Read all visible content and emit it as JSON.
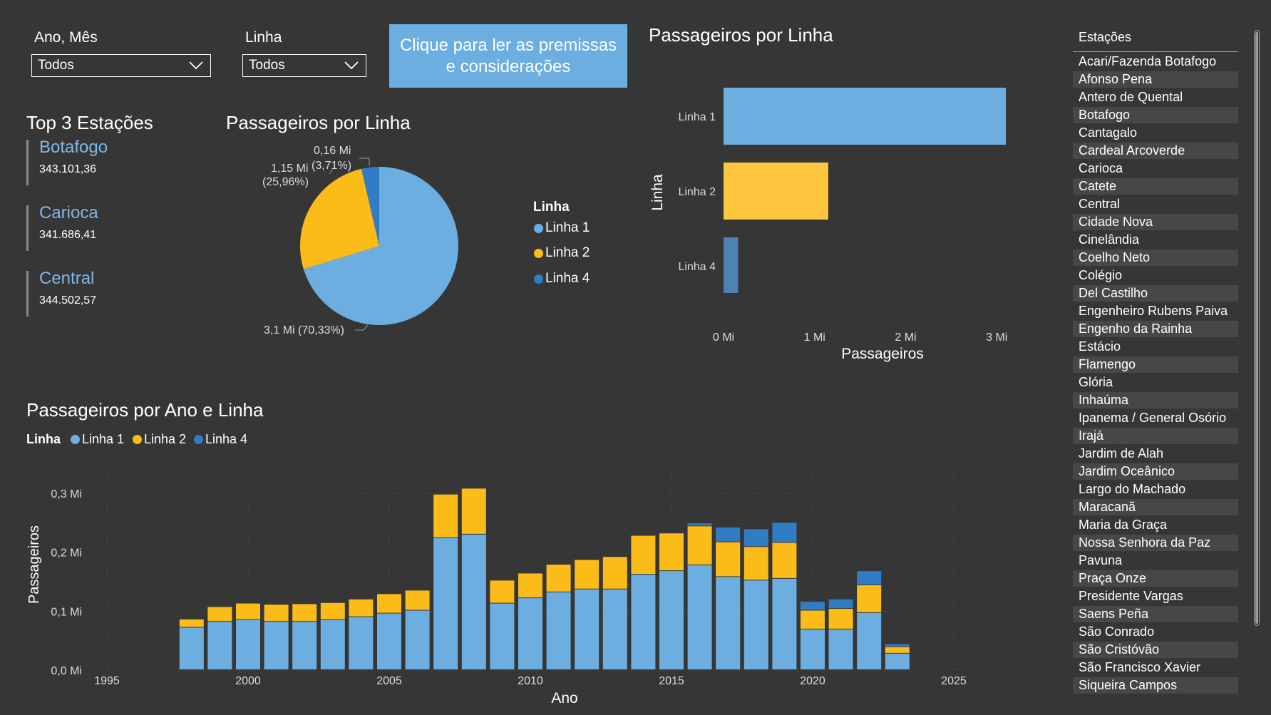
{
  "filters": {
    "period": {
      "title": "Ano, Mês",
      "value": "Todos"
    },
    "line": {
      "title": "Linha",
      "value": "Todos"
    }
  },
  "info_button": {
    "label": "Clique para ler as premissas e considerações"
  },
  "top3": {
    "title": "Top 3 Estações",
    "items": [
      {
        "name": "Botafogo",
        "value": "343.101,36"
      },
      {
        "name": "Carioca",
        "value": "341.686,41"
      },
      {
        "name": "Central",
        "value": "344.502,57"
      }
    ]
  },
  "pie": {
    "title": "Passageiros por Linha",
    "legend_title": "Linha",
    "labels": {
      "l1": "3,1 Mi (70,33%)",
      "l2a": "1,15 Mi",
      "l2b": "(25,96%)",
      "l4a": "0,16 Mi",
      "l4b": "(3,71%)"
    }
  },
  "hbar": {
    "title": "Passageiros por Linha",
    "ylabel": "Linha",
    "xlabel": "Passageiros"
  },
  "stacked": {
    "title": "Passageiros por Ano e Linha",
    "legend_title": "Linha",
    "xlabel": "Ano",
    "ylabel": "Passageiros"
  },
  "colors": {
    "linha1": "#6daee0",
    "linha2": "#fbbc1a",
    "linha4": "#2f7ec5",
    "hbar_linha2": "#ffc640",
    "hbar_linha4": "#4d82b3"
  },
  "chart_data": [
    {
      "type": "pie",
      "title": "Passageiros por Linha",
      "legend": [
        "Linha 1",
        "Linha 2",
        "Linha 4"
      ],
      "categories": [
        "Linha 1",
        "Linha 2",
        "Linha 4"
      ],
      "values": [
        3.1,
        1.15,
        0.16
      ],
      "percent": [
        70.33,
        25.96,
        3.71
      ],
      "unit": "Mi"
    },
    {
      "type": "bar",
      "orientation": "horizontal",
      "title": "Passageiros por Linha",
      "categories": [
        "Linha 1",
        "Linha 2",
        "Linha 4"
      ],
      "values": [
        3.1,
        1.15,
        0.16
      ],
      "xlabel": "Passageiros",
      "ylabel": "Linha",
      "xticks": [
        "0 Mi",
        "1 Mi",
        "2 Mi",
        "3 Mi"
      ],
      "xlim": [
        0,
        3.1
      ]
    },
    {
      "type": "bar",
      "stacked": true,
      "title": "Passageiros por Ano e Linha",
      "xlabel": "Ano",
      "ylabel": "Passageiros",
      "xlim": [
        1995,
        2025
      ],
      "xticks": [
        1995,
        2000,
        2005,
        2010,
        2015,
        2020,
        2025
      ],
      "ylim": [
        0,
        0.3
      ],
      "yticks": [
        "0,0 Mi",
        "0,1 Mi",
        "0,2 Mi",
        "0,3 Mi"
      ],
      "grid": true,
      "legend": "top-left",
      "x": [
        1998,
        1999,
        2000,
        2001,
        2002,
        2003,
        2004,
        2005,
        2006,
        2007,
        2008,
        2009,
        2010,
        2011,
        2012,
        2013,
        2014,
        2015,
        2016,
        2017,
        2018,
        2019,
        2020,
        2021,
        2022,
        2023
      ],
      "series": [
        {
          "name": "Linha 1",
          "values": [
            0.072,
            0.082,
            0.085,
            0.082,
            0.082,
            0.085,
            0.09,
            0.096,
            0.101,
            0.224,
            0.23,
            0.113,
            0.122,
            0.132,
            0.137,
            0.137,
            0.162,
            0.168,
            0.178,
            0.158,
            0.152,
            0.155,
            0.069,
            0.069,
            0.097,
            0.028
          ]
        },
        {
          "name": "Linha 2",
          "values": [
            0.014,
            0.025,
            0.028,
            0.029,
            0.03,
            0.029,
            0.03,
            0.033,
            0.034,
            0.074,
            0.078,
            0.039,
            0.042,
            0.047,
            0.05,
            0.055,
            0.066,
            0.064,
            0.066,
            0.059,
            0.057,
            0.061,
            0.032,
            0.035,
            0.047,
            0.011
          ]
        },
        {
          "name": "Linha 4",
          "values": [
            0,
            0,
            0,
            0,
            0,
            0,
            0,
            0,
            0,
            0,
            0,
            0,
            0,
            0,
            0,
            0,
            0,
            0,
            0.005,
            0.025,
            0.03,
            0.034,
            0.015,
            0.016,
            0.024,
            0.005
          ]
        }
      ]
    }
  ],
  "stations": {
    "title": "Estações",
    "items": [
      "Acari/Fazenda Botafogo",
      "Afonso Pena",
      "Antero de Quental",
      "Botafogo",
      "Cantagalo",
      "Cardeal Arcoverde",
      "Carioca",
      "Catete",
      "Central",
      "Cidade Nova",
      "Cinelândia",
      "Coelho Neto",
      "Colégio",
      "Del Castilho",
      "Engenheiro Rubens Paiva",
      "Engenho da Rainha",
      "Estácio",
      "Flamengo",
      "Glória",
      "Inhaúma",
      "Ipanema / General Osório",
      "Irajá",
      "Jardim de Alah",
      "Jardim Oceânico",
      "Largo do Machado",
      "Maracanã",
      "Maria da Graça",
      "Nossa Senhora da Paz",
      "Pavuna",
      "Praça Onze",
      "Presidente Vargas",
      "Saens Peña",
      "São Conrado",
      "São Cristóvão",
      "São Francisco Xavier",
      "Siqueira Campos"
    ]
  }
}
